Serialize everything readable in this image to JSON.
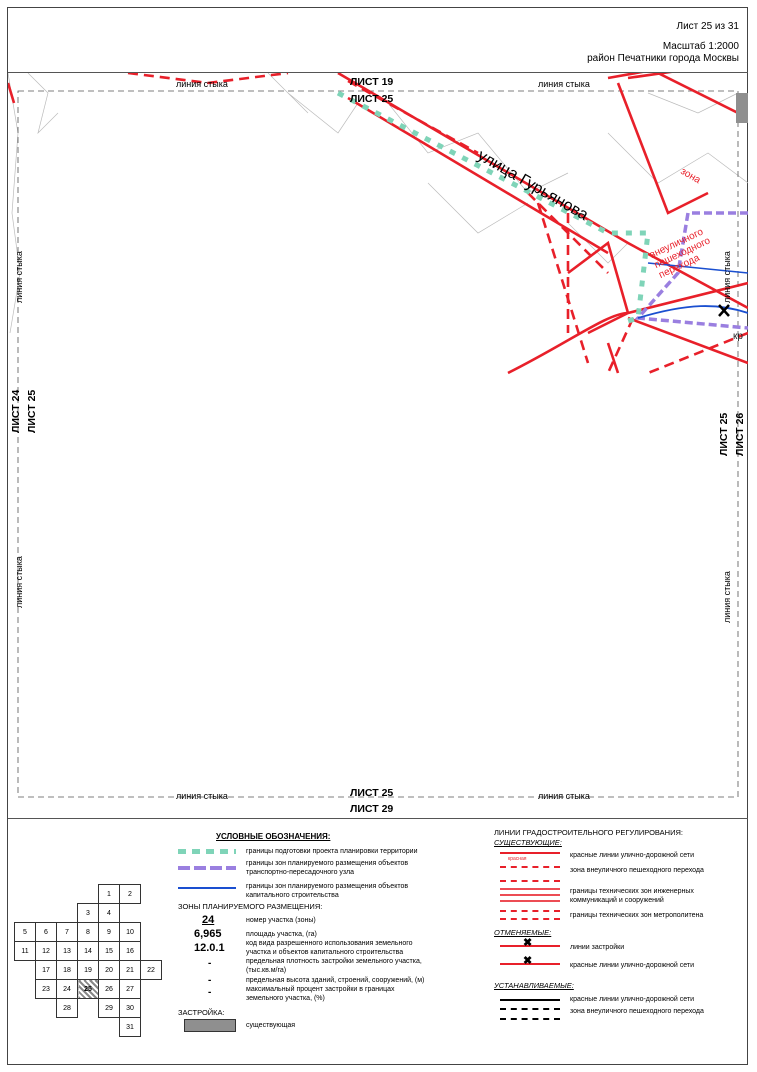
{
  "header": {
    "sheet": "Лист 25 из 31",
    "scale": "Масштаб 1:2000",
    "district": "район Печатники города Москвы"
  },
  "map": {
    "street_name": "улица Гурьянова",
    "zone_label": "зона",
    "crossing_label": "внеуличного пешеходного перехода",
    "kr_label": "кр",
    "joint_line": "линия стыка",
    "sheet_top_a": "ЛИСТ 19",
    "sheet_top_b": "ЛИСТ 25",
    "sheet_bottom_a": "ЛИСТ 25",
    "sheet_bottom_b": "ЛИСТ 29",
    "sheet_left_a": "ЛИСТ 24",
    "sheet_left_b": "ЛИСТ 25",
    "sheet_right_a": "ЛИСТ 25",
    "sheet_right_b": "ЛИСТ 26"
  },
  "legend": {
    "title": "УСЛОВНЫЕ ОБОЗНАЧЕНИЯ:",
    "items": [
      "границы подготовки проекта планировки территории",
      "границы зон планируемого размещения объектов транспортно-пересадочного узла",
      "границы зон планируемого размещения объектов капитального строительства"
    ],
    "zones_title": "ЗОНЫ ПЛАНИРУЕМОГО РАЗМЕЩЕНИЯ:",
    "zone_rows": [
      {
        "value": "24",
        "desc": "номер участка (зоны)"
      },
      {
        "value": "6,965",
        "desc": "площадь участка, (га)"
      },
      {
        "value": "12.0.1",
        "desc": "код вида разрешенного использования земельного участка и объектов капитального строительства"
      },
      {
        "value": "-",
        "desc": "предельная плотность застройки земельного участка, (тыс.кв.м/га)"
      },
      {
        "value": "-",
        "desc": "предельная высота зданий, строений, сооружений, (м)"
      },
      {
        "value": "-",
        "desc": "максимальный процент застройки в границах земельного участка, (%)"
      }
    ],
    "buildings_title": "ЗАСТРОЙКА:",
    "buildings_existing": "существующая",
    "reg_title": "ЛИНИИ ГРАДОСТРОИТЕЛЬНОГО РЕГУЛИРОВАНИЯ:",
    "existing_title": "СУЩЕСТВУЮЩИЕ:",
    "existing_items": [
      "красные линии улично-дорожной сети",
      "зона внеуличного пешеходного перехода",
      "границы технических зон инженерных коммуникаций и сооружений",
      "границы технических зон метрополитена"
    ],
    "cancel_title": "ОТМЕНЯЕМЫЕ:",
    "cancel_items": [
      "линии застройки",
      "красные линии улично-дорожной сети"
    ],
    "establish_title": "УСТАНАВЛИВАЕМЫЕ:",
    "establish_items": [
      "красные линии улично-дорожной сети",
      "зона внеуличного пешеходного перехода"
    ],
    "swatch_labels": {
      "red": "красная",
      "crossing": "зона внеуличного пешеходного перехода",
      "tech": "технич. зона",
      "metro": "тех. зона метро",
      "zastr": "линия застройки"
    }
  },
  "colors": {
    "red": "#e8202a",
    "purple": "#9a7fe0",
    "teal": "#7fd4b8",
    "blue": "#1a4fd0",
    "gray": "#8f8f8f"
  },
  "key_map": {
    "rows": [
      [
        "",
        "",
        "",
        "",
        "1",
        "2",
        ""
      ],
      [
        "",
        "",
        "",
        "3",
        "4",
        "",
        ""
      ],
      [
        "5",
        "6",
        "7",
        "8",
        "9",
        "10",
        ""
      ],
      [
        "11",
        "12",
        "13",
        "14",
        "15",
        "16",
        ""
      ],
      [
        "",
        "17",
        "18",
        "19",
        "20",
        "21",
        "22"
      ],
      [
        "",
        "23",
        "24",
        "25",
        "26",
        "27",
        ""
      ],
      [
        "",
        "",
        "28",
        "",
        "29",
        "30",
        ""
      ],
      [
        "",
        "",
        "",
        "",
        "",
        "31",
        ""
      ]
    ],
    "highlight": "25"
  }
}
